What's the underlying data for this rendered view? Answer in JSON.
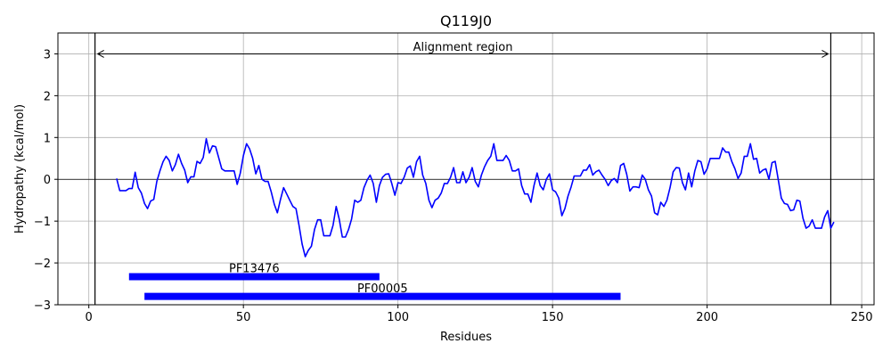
{
  "chart_data": {
    "type": "line",
    "title": "Q119J0",
    "xlabel": "Residues",
    "ylabel": "Hydropathy (kcal/mol)",
    "xlim": [
      -10,
      254
    ],
    "ylim": [
      -3,
      3.5
    ],
    "xticks": [
      0,
      50,
      100,
      150,
      200,
      250
    ],
    "yticks": [
      -3,
      -2,
      -1,
      0,
      1,
      2,
      3
    ],
    "grid": true,
    "colors": {
      "line": "#0000ff",
      "domain_bar": "#0000ff",
      "axes": "#000000",
      "grid": "#b0b0b0"
    },
    "series": [
      {
        "x": [
          9,
          10,
          11,
          12,
          13,
          14,
          15,
          16,
          17,
          18,
          19,
          20,
          21,
          22,
          23,
          24,
          25,
          26,
          27,
          28,
          29,
          30,
          31,
          32,
          33,
          34,
          35,
          36,
          37,
          38,
          39,
          40,
          41,
          42,
          43,
          44,
          45,
          46,
          47,
          48,
          49,
          50,
          51,
          52,
          53,
          54,
          55,
          56,
          57,
          58,
          59,
          60,
          61,
          62,
          63,
          64,
          65,
          66,
          67,
          68,
          69,
          70,
          71,
          72,
          73,
          74,
          75,
          76,
          77,
          78,
          79,
          80,
          81,
          82,
          83,
          84,
          85,
          86,
          87,
          88,
          89,
          90,
          91,
          92,
          93,
          94,
          95,
          96,
          97,
          98,
          99,
          100,
          101,
          102,
          103,
          104,
          105,
          106,
          107,
          108,
          109,
          110,
          111,
          112,
          113,
          114,
          115,
          116,
          117,
          118,
          119,
          120,
          121,
          122,
          123,
          124,
          125,
          126,
          127,
          128,
          129,
          130,
          131,
          132,
          133,
          134,
          135,
          136,
          137,
          138,
          139,
          140,
          141,
          142,
          143,
          144,
          145,
          146,
          147,
          148,
          149,
          150,
          151,
          152,
          153,
          154,
          155,
          156,
          157,
          158,
          159,
          160,
          161,
          162,
          163,
          164,
          165,
          166,
          167,
          168,
          169,
          170,
          171,
          172,
          173,
          174,
          175,
          176,
          177,
          178,
          179,
          180,
          181,
          182,
          183,
          184,
          185,
          186,
          187,
          188,
          189,
          190,
          191,
          192,
          193,
          194,
          195,
          196,
          197,
          198,
          199,
          200,
          201,
          202,
          203,
          204,
          205,
          206,
          207,
          208,
          209,
          210,
          211,
          212,
          213,
          214,
          215,
          216,
          217,
          218,
          219,
          220,
          221,
          222,
          223,
          224,
          225,
          226,
          227,
          228,
          229,
          230,
          231,
          232,
          233,
          234,
          235,
          236,
          237,
          238,
          239,
          240,
          241
        ],
        "y": [
          0.02,
          -0.27,
          -0.27,
          -0.27,
          -0.22,
          -0.22,
          0.17,
          -0.2,
          -0.33,
          -0.58,
          -0.7,
          -0.52,
          -0.48,
          -0.05,
          0.2,
          0.42,
          0.55,
          0.45,
          0.2,
          0.35,
          0.6,
          0.38,
          0.22,
          -0.08,
          0.06,
          0.06,
          0.43,
          0.38,
          0.52,
          0.97,
          0.63,
          0.8,
          0.78,
          0.52,
          0.25,
          0.2,
          0.2,
          0.2,
          0.2,
          -0.12,
          0.15,
          0.57,
          0.85,
          0.73,
          0.5,
          0.13,
          0.33,
          0.0,
          -0.05,
          -0.05,
          -0.3,
          -0.6,
          -0.8,
          -0.48,
          -0.2,
          -0.35,
          -0.5,
          -0.65,
          -0.7,
          -1.1,
          -1.55,
          -1.85,
          -1.7,
          -1.6,
          -1.2,
          -0.97,
          -0.97,
          -1.35,
          -1.35,
          -1.35,
          -1.1,
          -0.65,
          -0.95,
          -1.38,
          -1.38,
          -1.2,
          -0.95,
          -0.5,
          -0.55,
          -0.5,
          -0.2,
          -0.02,
          0.1,
          -0.1,
          -0.55,
          -0.15,
          0.05,
          0.12,
          0.13,
          -0.1,
          -0.38,
          -0.08,
          -0.1,
          0.05,
          0.27,
          0.32,
          0.05,
          0.42,
          0.55,
          0.1,
          -0.1,
          -0.5,
          -0.68,
          -0.5,
          -0.45,
          -0.33,
          -0.1,
          -0.1,
          0.05,
          0.28,
          -0.08,
          -0.08,
          0.18,
          -0.08,
          0.05,
          0.28,
          -0.05,
          -0.18,
          0.1,
          0.3,
          0.45,
          0.55,
          0.85,
          0.45,
          0.45,
          0.45,
          0.57,
          0.45,
          0.2,
          0.2,
          0.25,
          -0.15,
          -0.35,
          -0.35,
          -0.55,
          -0.15,
          0.15,
          -0.15,
          -0.25,
          0.0,
          0.13,
          -0.25,
          -0.3,
          -0.45,
          -0.87,
          -0.7,
          -0.4,
          -0.18,
          0.08,
          0.08,
          0.08,
          0.22,
          0.22,
          0.35,
          0.1,
          0.18,
          0.22,
          0.1,
          0.0,
          -0.15,
          -0.03,
          0.02,
          -0.08,
          0.33,
          0.38,
          0.12,
          -0.28,
          -0.18,
          -0.18,
          -0.2,
          0.1,
          0.0,
          -0.25,
          -0.4,
          -0.8,
          -0.85,
          -0.55,
          -0.65,
          -0.5,
          -0.2,
          0.18,
          0.28,
          0.27,
          -0.08,
          -0.25,
          0.15,
          -0.18,
          0.2,
          0.45,
          0.42,
          0.12,
          0.25,
          0.5,
          0.5,
          0.5,
          0.5,
          0.75,
          0.65,
          0.65,
          0.42,
          0.25,
          0.02,
          0.15,
          0.55,
          0.55,
          0.85,
          0.48,
          0.5,
          0.15,
          0.22,
          0.25,
          0.0,
          0.4,
          0.43,
          0.0,
          -0.45,
          -0.58,
          -0.6,
          -0.75,
          -0.73,
          -0.5,
          -0.52,
          -0.93,
          -1.17,
          -1.12,
          -0.97,
          -1.17,
          -1.17,
          -1.17,
          -0.9,
          -0.75,
          -1.17,
          -1.02
        ]
      }
    ],
    "vlines": [
      2,
      240
    ],
    "annotation": {
      "text": "Alignment region",
      "x_start": 2,
      "x_end": 240,
      "y": 3.0,
      "text_x": 121,
      "text_y": 3.07
    },
    "domains": [
      {
        "label": "PF13476",
        "start": 13,
        "end": 94,
        "y": -2.33,
        "label_x": 53.5,
        "label_y": -2.12
      },
      {
        "label": "PF00005",
        "start": 18,
        "end": 172,
        "y": -2.8,
        "label_x": 95,
        "label_y": -2.6
      }
    ]
  }
}
